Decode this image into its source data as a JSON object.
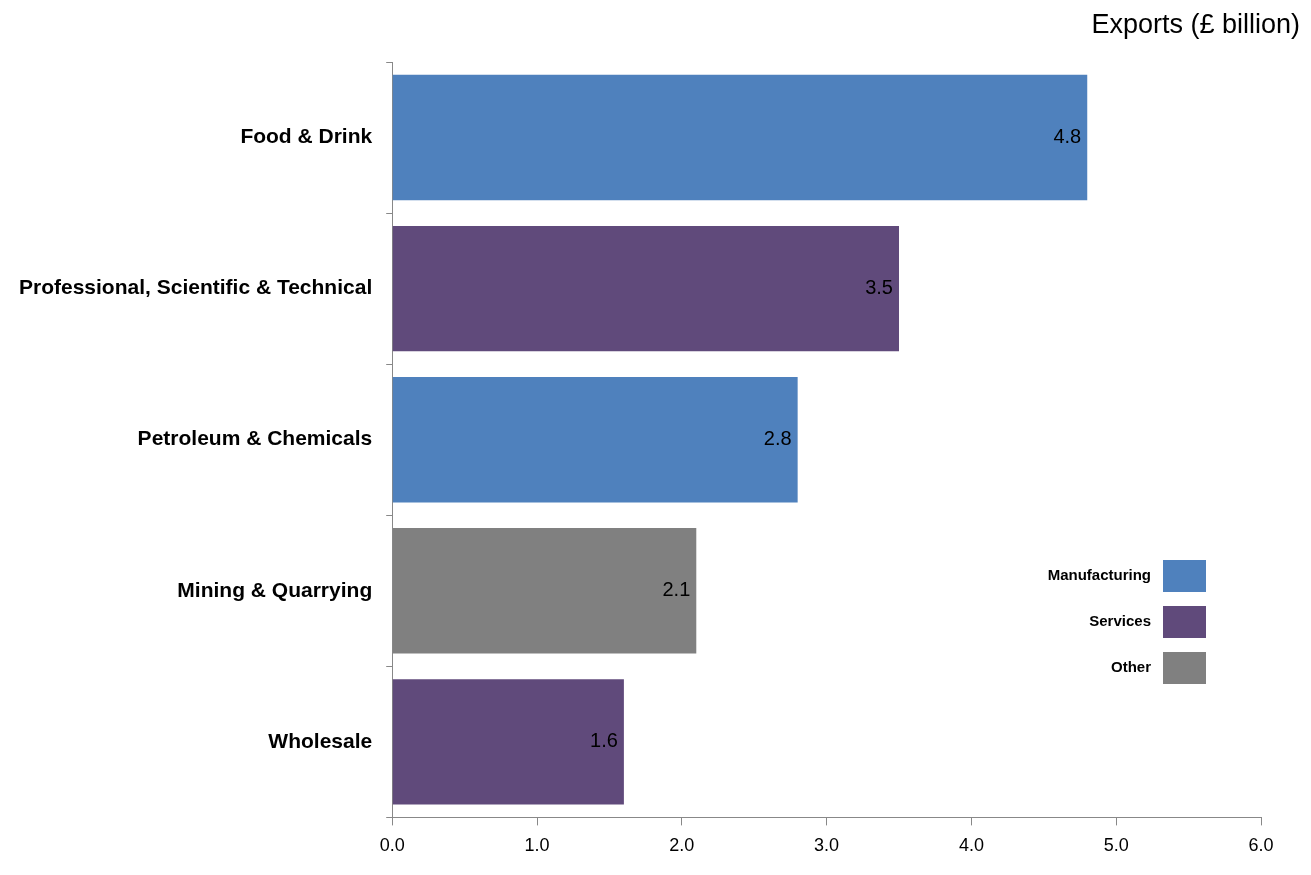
{
  "chart_data": {
    "type": "bar",
    "orientation": "horizontal",
    "stacked": true,
    "xlabel": "Exports (£ billion)",
    "categories": [
      "Food & Drink",
      "Professional, Scientific & Technical",
      "Petroleum & Chemicals",
      "Mining & Quarrying",
      "Wholesale"
    ],
    "series": [
      {
        "name": "Manufacturing",
        "color": "#4f81bd",
        "values": [
          4.8,
          null,
          2.8,
          null,
          null
        ]
      },
      {
        "name": "Services",
        "color": "#604a7b",
        "values": [
          null,
          3.5,
          null,
          null,
          1.6
        ]
      },
      {
        "name": "Other",
        "color": "#808080",
        "values": [
          null,
          null,
          null,
          2.1,
          null
        ]
      }
    ],
    "xlim": [
      0,
      6
    ],
    "xticks": [
      {
        "value": 0,
        "label": "0.0"
      },
      {
        "value": 1,
        "label": "1.0"
      },
      {
        "value": 2,
        "label": "2.0"
      },
      {
        "value": 3,
        "label": "3.0"
      },
      {
        "value": 4,
        "label": "4.0"
      },
      {
        "value": 5,
        "label": "5.0"
      },
      {
        "value": 6,
        "label": "6.0"
      }
    ],
    "data_labels": true,
    "grid": false,
    "legend": "bottom right"
  }
}
